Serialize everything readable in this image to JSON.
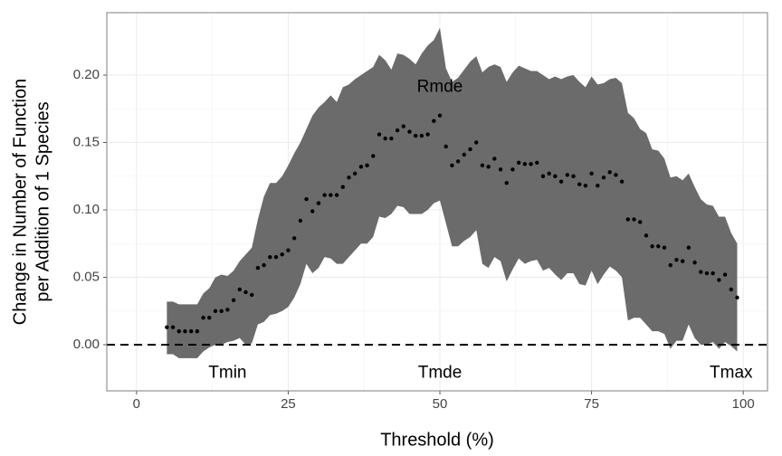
{
  "chart_data": {
    "type": "scatter",
    "xlabel": "Threshold (%)",
    "ylabel": [
      "Change in Number of Function",
      "per Addition of 1 Species"
    ],
    "x": [
      5,
      6,
      7,
      8,
      9,
      10,
      11,
      12,
      13,
      14,
      15,
      16,
      17,
      18,
      19,
      20,
      21,
      22,
      23,
      24,
      25,
      26,
      27,
      28,
      29,
      30,
      31,
      32,
      33,
      34,
      35,
      36,
      37,
      38,
      39,
      40,
      41,
      42,
      43,
      44,
      45,
      46,
      47,
      48,
      49,
      50,
      51,
      52,
      53,
      54,
      55,
      56,
      57,
      58,
      59,
      60,
      61,
      62,
      63,
      64,
      65,
      66,
      67,
      68,
      69,
      70,
      71,
      72,
      73,
      74,
      75,
      76,
      77,
      78,
      79,
      80,
      81,
      82,
      83,
      84,
      85,
      86,
      87,
      88,
      89,
      90,
      91,
      92,
      93,
      94,
      95,
      96,
      97,
      98,
      99
    ],
    "values": [
      0.013,
      0.013,
      0.01,
      0.01,
      0.01,
      0.01,
      0.02,
      0.02,
      0.025,
      0.025,
      0.026,
      0.033,
      0.041,
      0.039,
      0.037,
      0.057,
      0.059,
      0.065,
      0.065,
      0.067,
      0.07,
      0.079,
      0.092,
      0.108,
      0.099,
      0.105,
      0.111,
      0.111,
      0.111,
      0.117,
      0.124,
      0.127,
      0.132,
      0.133,
      0.14,
      0.156,
      0.153,
      0.153,
      0.159,
      0.162,
      0.158,
      0.155,
      0.155,
      0.156,
      0.166,
      0.17,
      0.147,
      0.133,
      0.136,
      0.141,
      0.145,
      0.15,
      0.133,
      0.132,
      0.138,
      0.13,
      0.12,
      0.13,
      0.135,
      0.134,
      0.134,
      0.135,
      0.125,
      0.127,
      0.125,
      0.121,
      0.126,
      0.125,
      0.119,
      0.118,
      0.127,
      0.118,
      0.124,
      0.128,
      0.126,
      0.121,
      0.093,
      0.093,
      0.091,
      0.081,
      0.073,
      0.073,
      0.072,
      0.059,
      0.063,
      0.062,
      0.072,
      0.061,
      0.054,
      0.053,
      0.053,
      0.048,
      0.052,
      0.041,
      0.035
    ],
    "upper": [
      0.032,
      0.032,
      0.03,
      0.03,
      0.03,
      0.03,
      0.038,
      0.042,
      0.05,
      0.052,
      0.051,
      0.055,
      0.062,
      0.067,
      0.072,
      0.093,
      0.11,
      0.12,
      0.12,
      0.125,
      0.133,
      0.142,
      0.15,
      0.16,
      0.17,
      0.176,
      0.18,
      0.185,
      0.18,
      0.191,
      0.193,
      0.197,
      0.2,
      0.203,
      0.206,
      0.215,
      0.211,
      0.204,
      0.216,
      0.215,
      0.212,
      0.208,
      0.216,
      0.222,
      0.226,
      0.235,
      0.205,
      0.195,
      0.198,
      0.204,
      0.21,
      0.214,
      0.202,
      0.206,
      0.208,
      0.206,
      0.195,
      0.202,
      0.207,
      0.205,
      0.203,
      0.203,
      0.2,
      0.197,
      0.199,
      0.197,
      0.199,
      0.2,
      0.195,
      0.191,
      0.199,
      0.193,
      0.194,
      0.197,
      0.198,
      0.194,
      0.172,
      0.168,
      0.16,
      0.157,
      0.145,
      0.144,
      0.138,
      0.124,
      0.125,
      0.122,
      0.127,
      0.117,
      0.108,
      0.104,
      0.103,
      0.095,
      0.095,
      0.083,
      0.075
    ],
    "lower": [
      -0.007,
      -0.007,
      -0.01,
      -0.01,
      -0.01,
      -0.01,
      -0.005,
      -0.002,
      0.0,
      0.0,
      0.002,
      0.003,
      0.005,
      0.0,
      0.001,
      0.015,
      0.017,
      0.022,
      0.023,
      0.025,
      0.028,
      0.035,
      0.045,
      0.06,
      0.053,
      0.057,
      0.065,
      0.064,
      0.06,
      0.06,
      0.065,
      0.07,
      0.075,
      0.075,
      0.08,
      0.095,
      0.094,
      0.097,
      0.103,
      0.102,
      0.097,
      0.097,
      0.097,
      0.1,
      0.105,
      0.107,
      0.09,
      0.073,
      0.073,
      0.077,
      0.08,
      0.085,
      0.06,
      0.057,
      0.065,
      0.062,
      0.047,
      0.056,
      0.064,
      0.06,
      0.062,
      0.063,
      0.055,
      0.057,
      0.052,
      0.048,
      0.053,
      0.053,
      0.045,
      0.044,
      0.055,
      0.045,
      0.052,
      0.058,
      0.055,
      0.05,
      0.018,
      0.02,
      0.02,
      0.015,
      0.01,
      0.01,
      0.008,
      -0.003,
      0.003,
      0.003,
      0.015,
      0.005,
      0.0,
      0.0,
      0.002,
      -0.003,
      0.002,
      -0.001,
      -0.005
    ],
    "color": "#000000",
    "band_color": "#6b6b6b",
    "hline": 0,
    "annotations": [
      {
        "text": "Rmde",
        "x": 50,
        "y": 0.191
      },
      {
        "text": "Tmin",
        "x": 15,
        "y": -0.021
      },
      {
        "text": "Tmde",
        "x": 50,
        "y": -0.021
      },
      {
        "text": "Tmax",
        "x": 98,
        "y": -0.021
      }
    ],
    "xlim": [
      -4.9,
      104
    ],
    "ylim": [
      -0.0342,
      0.2463
    ],
    "xticks": [
      0,
      25,
      50,
      75,
      100
    ],
    "yticks": [
      {
        "value": 0,
        "label": "0.00"
      },
      {
        "value": 0.05,
        "label": "0.05"
      },
      {
        "value": 0.1,
        "label": "0.10"
      },
      {
        "value": 0.15,
        "label": "0.15"
      },
      {
        "value": 0.2,
        "label": "0.20"
      }
    ],
    "grid": true
  }
}
